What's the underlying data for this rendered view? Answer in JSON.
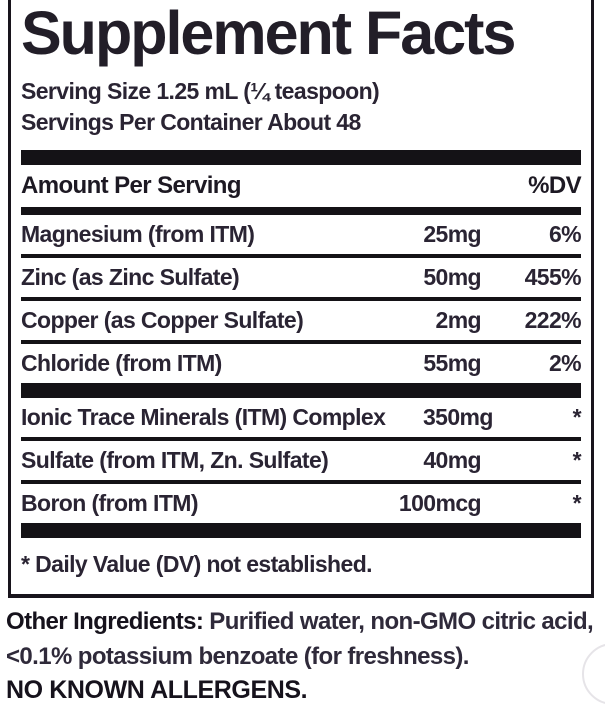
{
  "label": {
    "title": "Supplement Facts",
    "serving_size": "Serving Size 1.25 mL (¼ teaspoon)",
    "servings_per_container": "Servings Per Container About 48",
    "header": {
      "amount": "Amount Per Serving",
      "dv": "%DV"
    },
    "rows": [
      {
        "name": "Magnesium (from ITM)",
        "amount": "25mg",
        "dv": "6%"
      },
      {
        "name": "Zinc (as Zinc Sulfate)",
        "amount": "50mg",
        "dv": "455%"
      },
      {
        "name": "Copper (as Copper Sulfate)",
        "amount": "2mg",
        "dv": "222%"
      },
      {
        "name": "Chloride (from ITM)",
        "amount": "55mg",
        "dv": "2%"
      },
      {
        "name": "Ionic Trace Minerals (ITM) Complex",
        "amount": "350mg",
        "dv": "*"
      },
      {
        "name": "Sulfate (from ITM, Zn. Sulfate)",
        "amount": "40mg",
        "dv": "*"
      },
      {
        "name": "Boron (from ITM)",
        "amount": "100mcg",
        "dv": "*"
      }
    ],
    "footnote": "* Daily Value (DV) not established.",
    "other_ingredients_label": "Other Ingredients:",
    "other_ingredients_text": " Purified water, non-GMO citric acid, <0.1% potassium benzoate (for freshness).",
    "allergens": "NO KNOWN ALLERGENS.",
    "colors": {
      "text": "#2a2433",
      "heading": "#221e28",
      "bar": "#141216",
      "border": "#18141c",
      "watermark_circle": "#e6e4e8"
    }
  }
}
